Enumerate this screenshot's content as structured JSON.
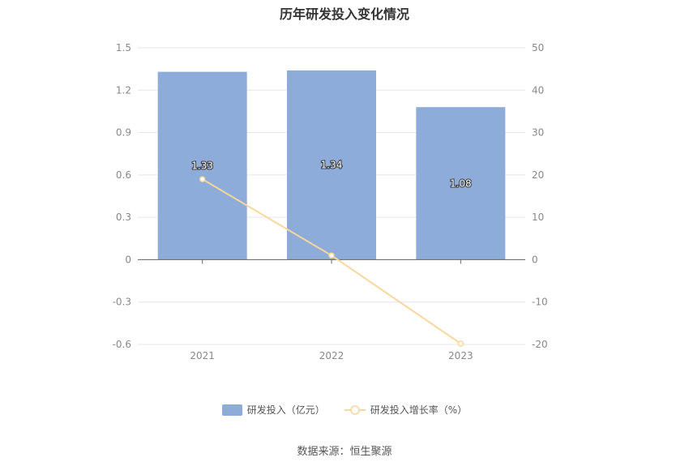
{
  "chart_data": {
    "type": "bar",
    "title": "历年研发投入变化情况",
    "categories": [
      "2021",
      "2022",
      "2023"
    ],
    "series": [
      {
        "name": "研发投入（亿元）",
        "type": "bar",
        "axis": "left",
        "values": [
          1.33,
          1.34,
          1.08
        ],
        "color": "#8eacd9"
      },
      {
        "name": "研发投入增长率（%）",
        "type": "line",
        "axis": "right",
        "values": [
          19.0,
          1.0,
          -19.8
        ],
        "color": "#f9d79a"
      }
    ],
    "y_left": {
      "ylim": [
        -0.6,
        1.5
      ],
      "ticks": [
        "1.5",
        "1.2",
        "0.9",
        "0.6",
        "0.3",
        "0",
        "-0.3",
        "-0.6"
      ]
    },
    "y_right": {
      "ylim": [
        -20,
        50
      ],
      "ticks": [
        "50",
        "40",
        "30",
        "20",
        "10",
        "0",
        "-10",
        "-20"
      ]
    },
    "grid": true,
    "legend_position": "bottom"
  },
  "source_text": "数据来源：恒生聚源"
}
